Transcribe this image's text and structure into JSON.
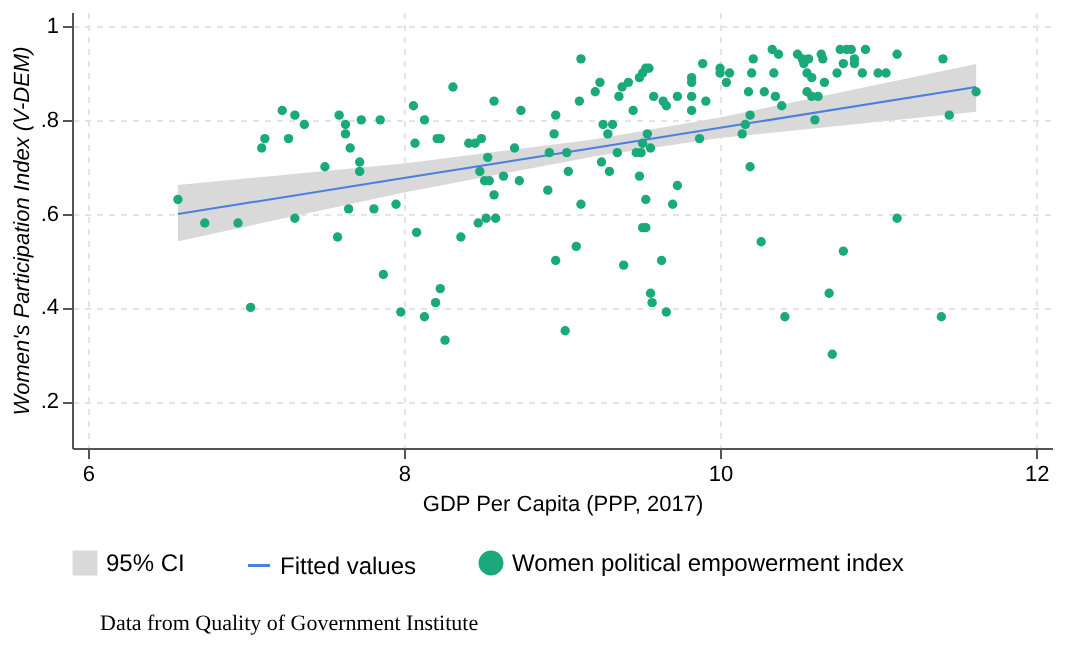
{
  "chart_data": {
    "type": "scatter",
    "xlabel": "GDP Per Capita (PPP, 2017)",
    "ylabel": "Women's Participation Index (V-DEM)",
    "xlim": [
      5.9,
      12.1
    ],
    "xticks": [
      6,
      8,
      10,
      12
    ],
    "ylim": [
      0.1,
      1.03
    ],
    "yticks": [
      {
        "value": 0.2,
        "label": ".2"
      },
      {
        "value": 0.4,
        "label": ".4"
      },
      {
        "value": 0.6,
        "label": ".6"
      },
      {
        "value": 0.8,
        "label": ".8"
      },
      {
        "value": 1,
        "label": "1"
      }
    ],
    "grid": true,
    "legend": "bottom",
    "annotations": [
      "Data from Quality of Government Institute"
    ],
    "series": [
      {
        "name": "95% CI",
        "type": "area",
        "color": "#d9d9d9"
      },
      {
        "name": "Fitted values",
        "type": "line",
        "color": "#4a7fe0",
        "x": [
          6.57,
          8,
          9.2,
          10,
          11.62
        ],
        "values": [
          0.599,
          0.676,
          0.74,
          0.783,
          0.87
        ],
        "lower": [
          0.541,
          0.645,
          0.722,
          0.761,
          0.817
        ],
        "upper": [
          0.661,
          0.707,
          0.758,
          0.805,
          0.919
        ]
      },
      {
        "name": "Women political empowerment index",
        "color": "#1aa97a",
        "marker": "circle",
        "x": [
          6.57,
          6.74,
          6.95,
          7.03,
          7.1,
          7.12,
          7.23,
          7.31,
          7.37,
          7.27,
          7.31,
          7.5,
          7.59,
          7.63,
          7.63,
          7.66,
          7.73,
          7.85,
          7.72,
          7.72,
          7.58,
          7.65,
          7.81,
          7.87,
          7.95,
          7.98,
          8.06,
          8.07,
          8.13,
          8.08,
          8.13,
          8.2,
          8.23,
          8.26,
          8.21,
          8.23,
          8.31,
          8.36,
          8.41,
          8.45,
          8.49,
          8.47,
          8.52,
          8.58,
          8.53,
          8.57,
          8.48,
          8.51,
          8.54,
          8.57,
          8.63,
          8.7,
          8.73,
          8.74,
          8.91,
          8.92,
          8.95,
          8.96,
          8.96,
          9.02,
          9.03,
          9.04,
          9.09,
          9.11,
          9.12,
          9.12,
          9.21,
          9.24,
          9.25,
          9.26,
          9.29,
          9.3,
          9.32,
          9.35,
          9.36,
          9.38,
          9.42,
          9.39,
          9.45,
          9.47,
          9.49,
          9.51,
          9.53,
          9.55,
          9.49,
          9.51,
          9.54,
          9.5,
          9.53,
          9.51,
          9.53,
          9.56,
          9.56,
          9.57,
          9.58,
          9.63,
          9.64,
          9.66,
          9.66,
          9.7,
          9.73,
          9.73,
          9.82,
          9.82,
          9.82,
          9.82,
          9.87,
          9.89,
          9.91,
          10.0,
          10.0,
          10.04,
          10.06,
          10.14,
          10.16,
          10.19,
          10.19,
          10.18,
          10.2,
          10.21,
          10.26,
          10.28,
          10.33,
          10.37,
          10.34,
          10.35,
          10.39,
          10.41,
          10.49,
          10.52,
          10.53,
          10.56,
          10.55,
          10.58,
          10.55,
          10.58,
          10.62,
          10.6,
          10.64,
          10.65,
          10.66,
          10.69,
          10.71,
          10.74,
          10.76,
          10.8,
          10.78,
          10.78,
          10.83,
          10.85,
          10.85,
          10.9,
          10.92,
          11.0,
          11.05,
          11.12,
          11.12,
          11.4,
          11.41,
          11.45,
          11.62
        ],
        "values": [
          0.63,
          0.58,
          0.58,
          0.4,
          0.74,
          0.76,
          0.82,
          0.81,
          0.79,
          0.76,
          0.59,
          0.7,
          0.81,
          0.79,
          0.77,
          0.74,
          0.8,
          0.8,
          0.71,
          0.69,
          0.55,
          0.61,
          0.61,
          0.47,
          0.62,
          0.39,
          0.83,
          0.75,
          0.8,
          0.56,
          0.38,
          0.41,
          0.44,
          0.33,
          0.76,
          0.76,
          0.87,
          0.55,
          0.75,
          0.75,
          0.76,
          0.58,
          0.59,
          0.59,
          0.72,
          0.84,
          0.69,
          0.67,
          0.67,
          0.64,
          0.68,
          0.74,
          0.67,
          0.82,
          0.65,
          0.73,
          0.77,
          0.81,
          0.5,
          0.35,
          0.73,
          0.69,
          0.53,
          0.84,
          0.93,
          0.62,
          0.86,
          0.88,
          0.71,
          0.79,
          0.77,
          0.69,
          0.79,
          0.73,
          0.85,
          0.87,
          0.88,
          0.49,
          0.82,
          0.73,
          0.89,
          0.9,
          0.91,
          0.91,
          0.68,
          0.75,
          0.77,
          0.73,
          0.63,
          0.57,
          0.57,
          0.74,
          0.43,
          0.41,
          0.85,
          0.5,
          0.84,
          0.83,
          0.39,
          0.62,
          0.66,
          0.85,
          0.89,
          0.88,
          0.85,
          0.82,
          0.76,
          0.92,
          0.84,
          0.9,
          0.91,
          0.88,
          0.9,
          0.77,
          0.79,
          0.81,
          0.7,
          0.86,
          0.9,
          0.93,
          0.54,
          0.86,
          0.95,
          0.94,
          0.9,
          0.85,
          0.83,
          0.38,
          0.94,
          0.93,
          0.92,
          0.93,
          0.9,
          0.89,
          0.86,
          0.85,
          0.85,
          0.8,
          0.94,
          0.93,
          0.88,
          0.43,
          0.3,
          0.9,
          0.95,
          0.95,
          0.92,
          0.52,
          0.95,
          0.93,
          0.92,
          0.9,
          0.95,
          0.9,
          0.9,
          0.94,
          0.59,
          0.38,
          0.93,
          0.81,
          0.86
        ]
      }
    ]
  }
}
